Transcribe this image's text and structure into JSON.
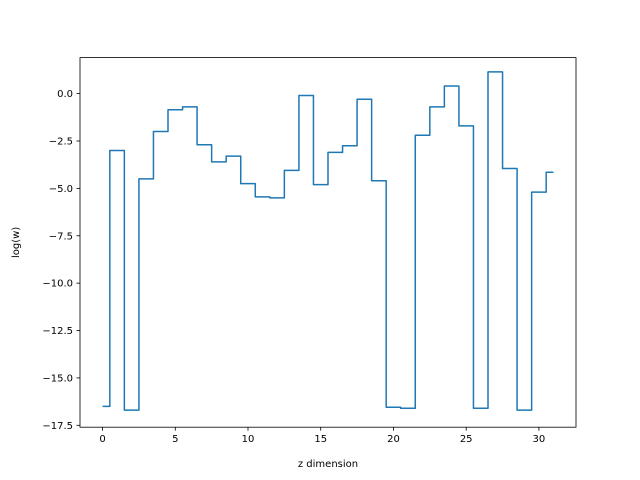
{
  "chart_data": {
    "type": "line",
    "drawstyle": "steps-mid",
    "title": "",
    "xlabel": "z dimension",
    "ylabel": "log(w)",
    "xlim": [
      -1.55,
      32.55
    ],
    "ylim": [
      -17.6,
      1.9
    ],
    "xticks": [
      0,
      5,
      10,
      15,
      20,
      25,
      30
    ],
    "xtick_labels": [
      "0",
      "5",
      "10",
      "15",
      "20",
      "25",
      "30"
    ],
    "yticks": [
      0.0,
      -2.5,
      -5.0,
      -7.5,
      -10.0,
      -12.5,
      -15.0,
      -17.5
    ],
    "ytick_labels": [
      "0.0",
      "−2.5",
      "−5.0",
      "−7.5",
      "−10.0",
      "−12.5",
      "−15.0",
      "−17.5"
    ],
    "grid": false,
    "legend": "none",
    "line_color": "#1f77b4",
    "series": [
      {
        "x": [
          0,
          1,
          2,
          3,
          4,
          5,
          6,
          7,
          8,
          9,
          10,
          11,
          12,
          13,
          14,
          15,
          16,
          17,
          18,
          19,
          20,
          21,
          22,
          23,
          24,
          25,
          26,
          27,
          28,
          29,
          30,
          31
        ],
        "values": [
          -16.5,
          -3.0,
          -16.7,
          -4.5,
          -2.0,
          -0.85,
          -0.7,
          -2.7,
          -3.6,
          -3.3,
          -4.75,
          -5.45,
          -5.5,
          -4.05,
          -0.1,
          -4.8,
          -3.1,
          -2.75,
          -0.3,
          -4.6,
          -16.55,
          -16.6,
          -2.2,
          -0.7,
          0.4,
          -1.7,
          -16.6,
          1.15,
          -3.95,
          -16.7,
          -5.2,
          -4.15
        ]
      }
    ]
  }
}
